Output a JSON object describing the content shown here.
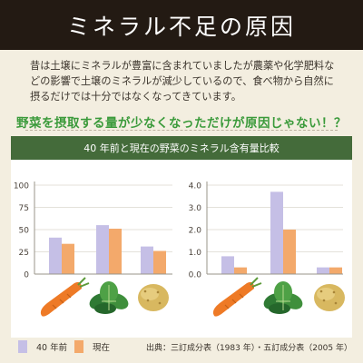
{
  "header": {
    "title": "ミネラル不足の原因"
  },
  "intro": "昔は土壌にミネラルが豊富に含まれていましたが農薬や化学肥料などの影響で土壌のミネラルが減少しているので、食べ物から自然に摂るだけでは十分ではなくなってきています。",
  "headline": "野菜を摂取する量が少なくなっただけが原因じゃない！？",
  "panel_title": "40 年前と現在の野菜のミネラル含有量比較",
  "source": "出典：三訂成分表（1983 年）・五訂成分表（2005 年）",
  "colors": {
    "past": "#c5bfe6",
    "present": "#f3a96b",
    "panel_bar": "#446b3a",
    "title_bar": "#231a13",
    "headline": "#3a9a3a"
  },
  "icons": [
    "carrot-icon",
    "spinach-icon",
    "potato-icon"
  ],
  "chart_data": [
    {
      "type": "bar",
      "categories": [
        "carrot",
        "spinach",
        "potato"
      ],
      "series": [
        {
          "name": "40 年前",
          "values": [
            41,
            55,
            31
          ]
        },
        {
          "name": "現在",
          "values": [
            34,
            51,
            26
          ]
        }
      ],
      "ylim": [
        0,
        100
      ],
      "yticks": [
        "0",
        "25",
        "50",
        "75",
        "100"
      ],
      "ytick_values": [
        0,
        25,
        50,
        75,
        100
      ],
      "grid": true,
      "legend": "bottom-left"
    },
    {
      "type": "bar",
      "categories": [
        "carrot",
        "spinach",
        "potato"
      ],
      "series": [
        {
          "name": "40 年前",
          "values": [
            0.8,
            3.7,
            0.3
          ]
        },
        {
          "name": "現在",
          "values": [
            0.3,
            2.0,
            0.3
          ]
        }
      ],
      "ylim": [
        0,
        4
      ],
      "yticks": [
        "0.0",
        "1.0",
        "2.0",
        "3.0",
        "4.0"
      ],
      "ytick_values": [
        0,
        1,
        2,
        3,
        4
      ],
      "grid": true,
      "legend": "bottom-left"
    }
  ]
}
